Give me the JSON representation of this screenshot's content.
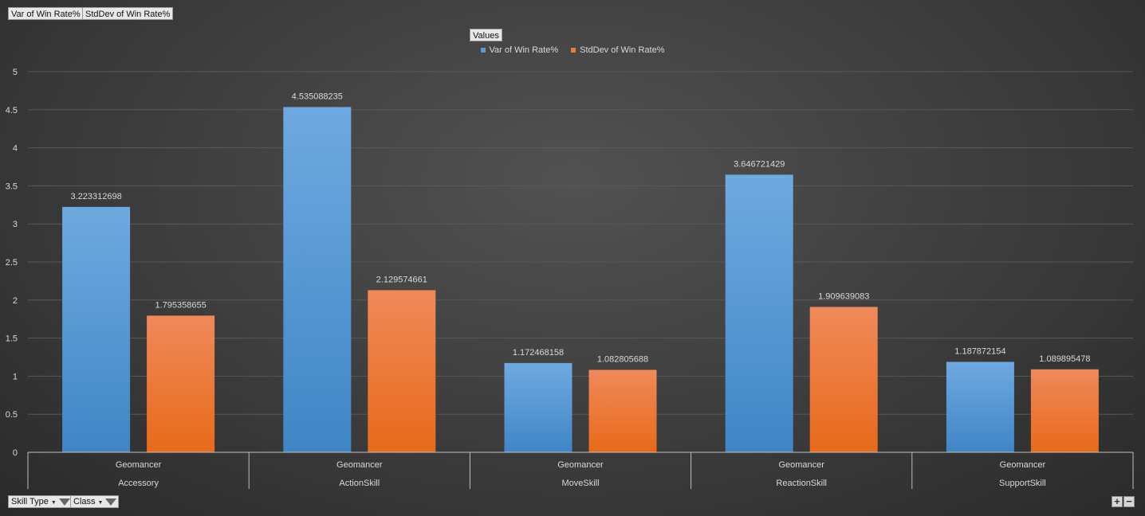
{
  "top_fields": {
    "var_button": "Var of Win Rate%",
    "std_button": "StdDev of Win Rate%",
    "values_button": "Values"
  },
  "bottom_fields": {
    "skill_type": "Skill Type",
    "class": "Class"
  },
  "colors": {
    "var": "#5b9bd5",
    "std": "#ed7d31",
    "grid": "#595959",
    "text": "#d9d9d9"
  },
  "chart_data": {
    "type": "bar",
    "ylim": [
      0,
      5
    ],
    "yticks": [
      "0",
      "0.5",
      "1",
      "1.5",
      "2",
      "2.5",
      "3",
      "3.5",
      "4",
      "4.5",
      "5"
    ],
    "categories": [
      {
        "class": "Geomancer",
        "skill_type": "Accessory"
      },
      {
        "class": "Geomancer",
        "skill_type": "ActionSkill"
      },
      {
        "class": "Geomancer",
        "skill_type": "MoveSkill"
      },
      {
        "class": "Geomancer",
        "skill_type": "ReactionSkill"
      },
      {
        "class": "Geomancer",
        "skill_type": "SupportSkill"
      }
    ],
    "series": [
      {
        "name": "Var of Win Rate%",
        "values": [
          3.223312698,
          4.535088235,
          1.172468158,
          3.646721429,
          1.187872154
        ],
        "labels": [
          "3.223312698",
          "4.535088235",
          "1.172468158",
          "3.646721429",
          "1.187872154"
        ]
      },
      {
        "name": "StdDev of Win Rate%",
        "values": [
          1.795358655,
          2.129574661,
          1.082805688,
          1.909639083,
          1.089895478
        ],
        "labels": [
          "1.795358655",
          "2.129574661",
          "1.082805688",
          "1.909639083",
          "1.089895478"
        ]
      }
    ],
    "grid": true,
    "legend": "top-center"
  }
}
